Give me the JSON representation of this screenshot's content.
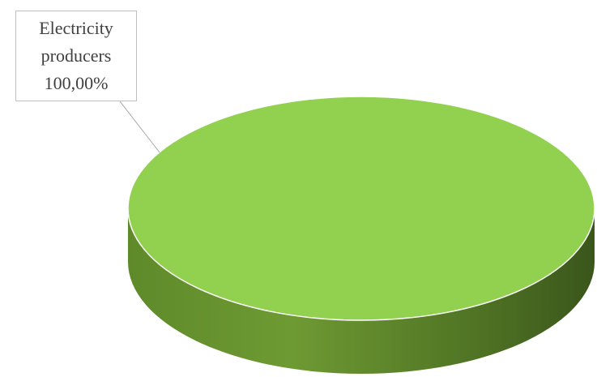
{
  "chart_data": {
    "type": "pie",
    "title": "",
    "slices": [
      {
        "label": "Electricity producers",
        "value": 100.0,
        "value_text": "100,00%",
        "color": "#92d050"
      }
    ],
    "style": "3d",
    "legend": "none",
    "data_labels": "callout"
  }
}
